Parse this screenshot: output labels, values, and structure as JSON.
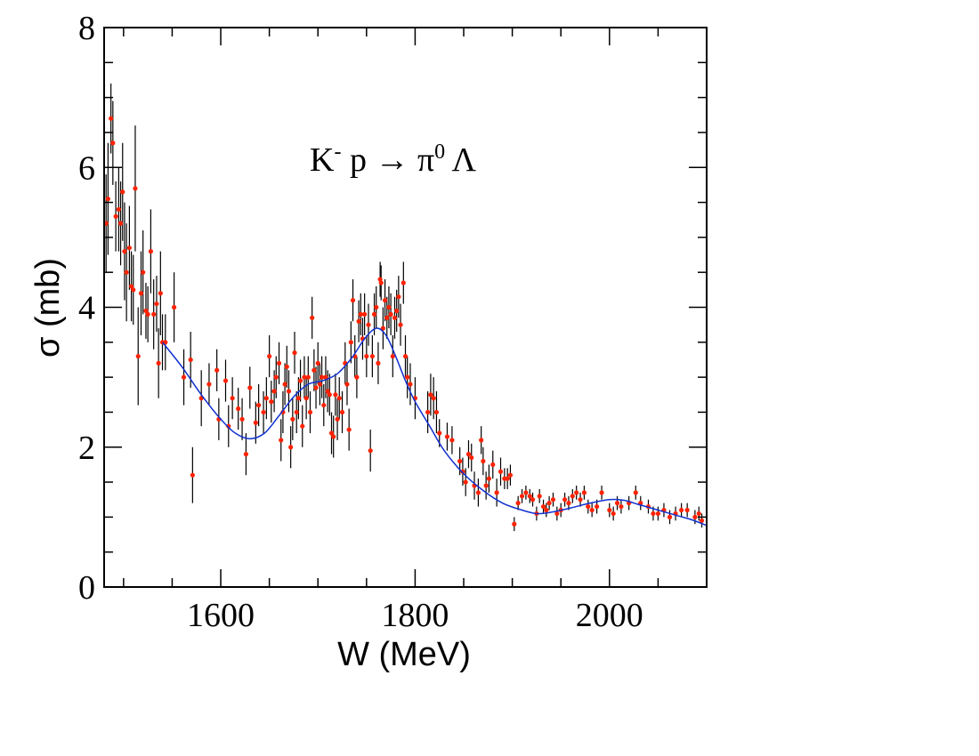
{
  "chart_data": {
    "type": "scatter",
    "title": "",
    "xlabel": "W (MeV)",
    "ylabel": "σ (mb)",
    "xlim": [
      1480,
      2100
    ],
    "ylim": [
      0,
      8
    ],
    "x_ticks": [
      1600,
      1800,
      2000
    ],
    "y_ticks": [
      0,
      2,
      4,
      6,
      8
    ],
    "grid": false,
    "annotation": {
      "base": "K",
      "sup1": "-",
      "mid": " p → π",
      "sup2": "0",
      "end": " Λ"
    },
    "colors": {
      "points": "#ff2200",
      "errorbars": "#000000",
      "fit": "#1030d0"
    },
    "series": [
      {
        "kind": "data",
        "points": [
          [
            1482,
            5.2,
            0.7
          ],
          [
            1484,
            5.55,
            0.8
          ],
          [
            1487,
            6.7,
            0.5
          ],
          [
            1489,
            6.35,
            0.6
          ],
          [
            1492,
            5.3,
            0.5
          ],
          [
            1495,
            5.4,
            0.6
          ],
          [
            1497,
            5.2,
            0.6
          ],
          [
            1499,
            5.65,
            0.7
          ],
          [
            1501,
            4.8,
            0.7
          ],
          [
            1503,
            4.5,
            0.7
          ],
          [
            1506,
            4.85,
            0.6
          ],
          [
            1508,
            4.3,
            0.5
          ],
          [
            1510,
            4.25,
            0.5
          ],
          [
            1512,
            5.7,
            0.9
          ],
          [
            1515,
            3.3,
            0.7
          ],
          [
            1518,
            4.2,
            0.6
          ],
          [
            1520,
            4.5,
            0.6
          ],
          [
            1523,
            3.95,
            0.4
          ],
          [
            1525,
            3.9,
            0.4
          ],
          [
            1528,
            4.8,
            0.6
          ],
          [
            1531,
            3.9,
            0.5
          ],
          [
            1534,
            4.05,
            0.4
          ],
          [
            1536,
            3.2,
            0.5
          ],
          [
            1538,
            4.2,
            0.6
          ],
          [
            1540,
            3.5,
            0.4
          ],
          [
            1543,
            3.5,
            0.4
          ],
          [
            1552,
            4.0,
            0.5
          ],
          [
            1562,
            3.0,
            0.4
          ],
          [
            1569,
            3.25,
            0.4
          ],
          [
            1571,
            1.6,
            0.4
          ],
          [
            1580,
            2.7,
            0.4
          ],
          [
            1588,
            2.9,
            0.3
          ],
          [
            1596,
            3.1,
            0.3
          ],
          [
            1598,
            2.4,
            0.3
          ],
          [
            1605,
            2.95,
            0.3
          ],
          [
            1608,
            2.3,
            0.3
          ],
          [
            1612,
            2.7,
            0.3
          ],
          [
            1618,
            2.55,
            0.3
          ],
          [
            1622,
            2.4,
            0.3
          ],
          [
            1626,
            1.9,
            0.3
          ],
          [
            1630,
            2.85,
            0.3
          ],
          [
            1636,
            2.35,
            0.3
          ],
          [
            1639,
            2.6,
            0.3
          ],
          [
            1644,
            2.5,
            0.3
          ],
          [
            1647,
            2.7,
            0.3
          ],
          [
            1650,
            3.3,
            0.3
          ],
          [
            1652,
            2.65,
            0.3
          ],
          [
            1655,
            2.8,
            0.3
          ],
          [
            1657,
            3.0,
            0.3
          ],
          [
            1660,
            3.2,
            0.3
          ],
          [
            1662,
            2.1,
            0.3
          ],
          [
            1664,
            2.5,
            0.3
          ],
          [
            1666,
            2.9,
            0.3
          ],
          [
            1668,
            3.15,
            0.3
          ],
          [
            1670,
            2.8,
            0.3
          ],
          [
            1672,
            2.0,
            0.3
          ],
          [
            1674,
            2.4,
            0.3
          ],
          [
            1676,
            3.35,
            0.3
          ],
          [
            1678,
            2.5,
            0.3
          ],
          [
            1680,
            2.7,
            0.3
          ],
          [
            1682,
            2.95,
            0.3
          ],
          [
            1684,
            2.3,
            0.3
          ],
          [
            1686,
            3.0,
            0.3
          ],
          [
            1688,
            2.7,
            0.3
          ],
          [
            1690,
            3.0,
            0.3
          ],
          [
            1692,
            2.5,
            0.3
          ],
          [
            1694,
            3.85,
            0.3
          ],
          [
            1696,
            3.1,
            0.3
          ],
          [
            1698,
            2.85,
            0.3
          ],
          [
            1700,
            3.2,
            0.3
          ],
          [
            1702,
            2.9,
            0.3
          ],
          [
            1704,
            3.0,
            0.3
          ],
          [
            1706,
            2.6,
            0.3
          ],
          [
            1708,
            3.0,
            0.3
          ],
          [
            1710,
            2.8,
            0.3
          ],
          [
            1712,
            2.75,
            0.3
          ],
          [
            1714,
            2.2,
            0.3
          ],
          [
            1716,
            2.15,
            0.3
          ],
          [
            1718,
            2.75,
            0.3
          ],
          [
            1720,
            2.4,
            0.3
          ],
          [
            1722,
            2.7,
            0.3
          ],
          [
            1725,
            2.5,
            0.3
          ],
          [
            1728,
            3.2,
            0.3
          ],
          [
            1730,
            2.9,
            0.3
          ],
          [
            1732,
            2.25,
            0.3
          ],
          [
            1734,
            3.5,
            0.3
          ],
          [
            1736,
            4.1,
            0.3
          ],
          [
            1738,
            3.3,
            0.3
          ],
          [
            1740,
            3.0,
            0.3
          ],
          [
            1742,
            3.8,
            0.3
          ],
          [
            1744,
            3.9,
            0.3
          ],
          [
            1746,
            3.55,
            0.3
          ],
          [
            1748,
            3.9,
            0.3
          ],
          [
            1750,
            3.3,
            0.3
          ],
          [
            1752,
            3.75,
            0.3
          ],
          [
            1754,
            1.95,
            0.3
          ],
          [
            1756,
            3.3,
            0.3
          ],
          [
            1758,
            3.9,
            0.3
          ],
          [
            1760,
            4.0,
            0.3
          ],
          [
            1762,
            3.2,
            0.3
          ],
          [
            1764,
            4.4,
            0.25
          ],
          [
            1765,
            4.35,
            0.25
          ],
          [
            1767,
            3.7,
            0.3
          ],
          [
            1769,
            4.1,
            0.3
          ],
          [
            1771,
            3.85,
            0.3
          ],
          [
            1773,
            4.0,
            0.3
          ],
          [
            1775,
            3.9,
            0.3
          ],
          [
            1777,
            3.3,
            0.3
          ],
          [
            1779,
            3.85,
            0.3
          ],
          [
            1781,
            3.95,
            0.3
          ],
          [
            1783,
            4.15,
            0.3
          ],
          [
            1785,
            3.75,
            0.3
          ],
          [
            1788,
            4.35,
            0.3
          ],
          [
            1790,
            3.3,
            0.3
          ],
          [
            1792,
            3.0,
            0.3
          ],
          [
            1795,
            2.9,
            0.3
          ],
          [
            1800,
            2.7,
            0.3
          ],
          [
            1813,
            2.5,
            0.3
          ],
          [
            1816,
            2.75,
            0.3
          ],
          [
            1819,
            2.7,
            0.3
          ],
          [
            1822,
            2.5,
            0.3
          ],
          [
            1825,
            2.2,
            0.2
          ],
          [
            1833,
            2.15,
            0.2
          ],
          [
            1838,
            2.1,
            0.2
          ],
          [
            1846,
            1.8,
            0.2
          ],
          [
            1849,
            1.65,
            0.2
          ],
          [
            1852,
            1.5,
            0.2
          ],
          [
            1855,
            1.9,
            0.2
          ],
          [
            1858,
            1.85,
            0.2
          ],
          [
            1861,
            1.45,
            0.2
          ],
          [
            1865,
            1.35,
            0.2
          ],
          [
            1868,
            2.1,
            0.2
          ],
          [
            1870,
            1.8,
            0.2
          ],
          [
            1873,
            1.45,
            0.2
          ],
          [
            1876,
            1.55,
            0.2
          ],
          [
            1880,
            1.75,
            0.2
          ],
          [
            1884,
            1.35,
            0.2
          ],
          [
            1888,
            1.65,
            0.2
          ],
          [
            1892,
            1.55,
            0.15
          ],
          [
            1895,
            1.55,
            0.15
          ],
          [
            1898,
            1.6,
            0.15
          ],
          [
            1902,
            0.9,
            0.1
          ],
          [
            1906,
            1.2,
            0.1
          ],
          [
            1910,
            1.3,
            0.1
          ],
          [
            1914,
            1.35,
            0.1
          ],
          [
            1918,
            1.3,
            0.1
          ],
          [
            1921,
            1.25,
            0.1
          ],
          [
            1925,
            1.05,
            0.1
          ],
          [
            1928,
            1.3,
            0.1
          ],
          [
            1932,
            1.15,
            0.1
          ],
          [
            1935,
            1.1,
            0.1
          ],
          [
            1938,
            1.2,
            0.1
          ],
          [
            1942,
            1.25,
            0.1
          ],
          [
            1946,
            1.05,
            0.1
          ],
          [
            1950,
            1.1,
            0.1
          ],
          [
            1954,
            1.25,
            0.1
          ],
          [
            1958,
            1.2,
            0.1
          ],
          [
            1962,
            1.3,
            0.1
          ],
          [
            1966,
            1.35,
            0.1
          ],
          [
            1970,
            1.25,
            0.1
          ],
          [
            1974,
            1.35,
            0.1
          ],
          [
            1978,
            1.15,
            0.1
          ],
          [
            1982,
            1.1,
            0.1
          ],
          [
            1987,
            1.15,
            0.1
          ],
          [
            1992,
            1.35,
            0.1
          ],
          [
            2000,
            1.1,
            0.1
          ],
          [
            2004,
            1.05,
            0.1
          ],
          [
            2008,
            1.2,
            0.1
          ],
          [
            2012,
            1.15,
            0.1
          ],
          [
            2020,
            1.2,
            0.1
          ],
          [
            2027,
            1.35,
            0.1
          ],
          [
            2032,
            1.2,
            0.1
          ],
          [
            2040,
            1.15,
            0.1
          ],
          [
            2045,
            1.05,
            0.1
          ],
          [
            2050,
            1.05,
            0.1
          ],
          [
            2056,
            1.1,
            0.1
          ],
          [
            2062,
            1.0,
            0.1
          ],
          [
            2068,
            1.05,
            0.1
          ],
          [
            2074,
            1.1,
            0.1
          ],
          [
            2080,
            1.1,
            0.1
          ],
          [
            2088,
            1.0,
            0.1
          ],
          [
            2092,
            1.05,
            0.1
          ],
          [
            2095,
            0.95,
            0.1
          ]
        ]
      },
      {
        "kind": "fit",
        "points": [
          [
            1540,
            3.5
          ],
          [
            1560,
            3.15
          ],
          [
            1580,
            2.75
          ],
          [
            1600,
            2.4
          ],
          [
            1615,
            2.2
          ],
          [
            1630,
            2.12
          ],
          [
            1645,
            2.2
          ],
          [
            1660,
            2.45
          ],
          [
            1675,
            2.72
          ],
          [
            1690,
            2.9
          ],
          [
            1705,
            2.95
          ],
          [
            1720,
            3.05
          ],
          [
            1735,
            3.28
          ],
          [
            1748,
            3.55
          ],
          [
            1760,
            3.7
          ],
          [
            1770,
            3.6
          ],
          [
            1780,
            3.3
          ],
          [
            1790,
            2.95
          ],
          [
            1800,
            2.65
          ],
          [
            1815,
            2.3
          ],
          [
            1830,
            1.95
          ],
          [
            1850,
            1.62
          ],
          [
            1870,
            1.38
          ],
          [
            1890,
            1.2
          ],
          [
            1910,
            1.1
          ],
          [
            1925,
            1.05
          ],
          [
            1940,
            1.07
          ],
          [
            1960,
            1.13
          ],
          [
            1980,
            1.2
          ],
          [
            2000,
            1.25
          ],
          [
            2015,
            1.24
          ],
          [
            2030,
            1.18
          ],
          [
            2050,
            1.1
          ],
          [
            2070,
            1.02
          ],
          [
            2085,
            0.96
          ],
          [
            2100,
            0.88
          ]
        ]
      }
    ]
  }
}
